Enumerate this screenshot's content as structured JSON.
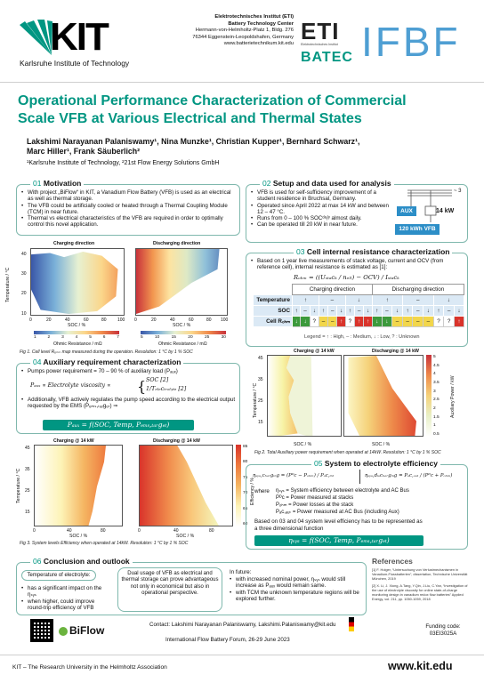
{
  "header": {
    "kit_logo_text": "KIT",
    "kit_subtitle": "Karlsruhe Institute of Technology",
    "institute_lines": [
      "Elektrotechnisches Institut (ETI)",
      "Battery Technology Center",
      "Hermann-von-Helmholtz-Platz 1, Bldg. 276",
      "76344 Eggenstein-Leopoldshafen, Germany",
      "www.batterietechnikum.kit.edu"
    ],
    "eti_logo": "ETI",
    "eti_sub": "Elektrotechnisches Institut",
    "btc_logo": "BATEC",
    "ifbf_logo": "IFBF"
  },
  "title": "Operational Performance Characterization of Commercial Scale VFB at Various Electrical and Thermal States",
  "authors_line1": "Lakshimi Narayanan Palaniswamy¹, Nina Munzke¹, Christian Kupper¹, Bernhard Schwarz¹,",
  "authors_line2": "Marc Hiller¹, Frank Säuberlich²",
  "affiliations": "¹Karlsruhe Institute of Technology, ²21st Flow Energy Solutions GmbH",
  "motivation": {
    "num": "01",
    "title": "Motivation",
    "bullets": [
      "With project „BiFlow“ in KIT, a Vanadium Flow Battery (VFB) is used as an electrical as well as thermal storage.",
      "The VFB could be artificially cooled or heated through a Thermal Coupling Module (TCM) in near future.",
      "Thermal vs electrical characteristics of the VFB are required in order to optimally control this novel application."
    ],
    "chart_titles": [
      "Charging direction",
      "Discharging direction"
    ],
    "ylabel": "Temperature / °C",
    "xlabel": "SOC / %",
    "cbar_label": "Ohmic Resistance / mΩ",
    "cbar1_ticks": [
      "1",
      "2",
      "3",
      "4",
      "5",
      "6",
      "7"
    ],
    "cbar2_ticks": [
      "5",
      "10",
      "15",
      "20",
      "25",
      "30"
    ],
    "caption": "Fig 1. Cell level Rₒₕₘ map measured during the operation. Resolution: 1 °C by 1 % SOC"
  },
  "setup": {
    "num": "02",
    "title": "Setup and data used for analysis",
    "bullets": [
      "VFB is used for self-sufficiency improvement of a student residence in Bruchsal, Germany.",
      "Operated since April 2022 at max 14 kW and between 12 – 47 °C.",
      "Runs from 0 – 100 % SOCᵈᵃᵢˡʸ almost daily.",
      "Can be operated till 20 kW in near future."
    ],
    "aux_label": "AUX",
    "power_label": "14 kW",
    "vfb_label": "120 kWh VFB",
    "grid_symbol": "~ 3"
  },
  "resistance": {
    "num": "03",
    "title": "Cell internal resistance characterization",
    "bullet": "Based on 1 year live measurements of stack voltage, current and OCV (from reference cell), internal resistance is estimated as [1]:",
    "formula": "Rₒₕₘ = ((Uₛₜₐcₖ / nₑₗₗ) − OCV) / Iₛₜₐcₖ",
    "col_headers": [
      "Charging direction",
      "Discharging direction"
    ],
    "row_labels": [
      "Temperature",
      "SOC",
      "Cell Rₒₕₘ"
    ],
    "temp_row": [
      "↑",
      "–",
      "↓",
      "↑",
      "–",
      "↓"
    ],
    "soc_row": [
      "↑",
      "–",
      "↓",
      "↑",
      "–",
      "↓",
      "↑",
      "–",
      "↓",
      "↑",
      "–",
      "↓",
      "↑",
      "–",
      "↓",
      "↑",
      "–",
      "↓"
    ],
    "cell_row": [
      "↓",
      "↓",
      "?",
      "–",
      "–",
      "↑",
      "?",
      "↑",
      "↑",
      "↓",
      "↓",
      "–",
      "–",
      "–",
      "–",
      "?",
      "?",
      "↑"
    ],
    "cell_colors": [
      "#3c9a3c",
      "#3c9a3c",
      "#ffffff",
      "#f2d64b",
      "#f2d64b",
      "#d9342b",
      "#ffffff",
      "#d9342b",
      "#d9342b",
      "#3c9a3c",
      "#3c9a3c",
      "#f2d64b",
      "#f2d64b",
      "#f2d64b",
      "#f2d64b",
      "#ffffff",
      "#ffffff",
      "#d9342b"
    ],
    "legend": "Legend = ↑ : High, – : Medium, ↓ : Low, ? : Unknown"
  },
  "auxiliary": {
    "num": "04",
    "title": "Auxiliary requirement characterization",
    "bullet1": "Pumps power requirement = 70 – 90 % of auxiliary load (Pₐᵤₓ)",
    "relation": "Pₐᵤₓ ∝ Electrolyte viscosity ∝",
    "relation_cases": [
      "SOC [2]",
      "1/Tₑₗₑcₜᵣₒₗᵧₜₑ [2]"
    ],
    "bullet2": "Additionally, VFB actively regulates the pump speed according to the electrical output requested by the EMS (Pₑₘₛ,ₜₐᵣgₑₜ) ⇒",
    "formula": "Pₐᵤₓ = f(SOC, Temp, Pₑₘₛ,ₜₐᵣgₑₜ)"
  },
  "aux_maps": {
    "titles": [
      "Charging @ 14 kW",
      "Discharging @ 14 kW"
    ],
    "ylabel": "Temperature / °C",
    "xlabel": "SOC / %",
    "cbar_label": "Auxiliary Power / kW",
    "cbar_ticks": [
      "5",
      "4.5",
      "4",
      "3.5",
      "3",
      "2.5",
      "2",
      "1.5",
      "1",
      "0.5"
    ],
    "caption": "Fig 2. Total Auxiliary power requirement when operated at 14kW. Resolution: 1 °C by 1 % SOC"
  },
  "eff_maps": {
    "titles": [
      "Charging @ 14 kW",
      "Discharging @ 14 kW"
    ],
    "ylabel": "Temperature / °C",
    "xlabel": "SOC / %",
    "cbar_label": "Efficiency / %",
    "cbar_ticks": [
      "85",
      "80",
      "75",
      "70",
      "65",
      "60"
    ],
    "caption": "Fig 3. System levels Efficiency when operated at 14kW. Resolution: 1 °C by 1 % SOC"
  },
  "x_ticks": [
    "0",
    "20",
    "40",
    "60",
    "80",
    "100"
  ],
  "y_ticks": [
    "45",
    "40",
    "35",
    "30",
    "25",
    "20",
    "15",
    "10"
  ],
  "system_eff": {
    "num": "05",
    "title": "System to electrolyte efficiency",
    "eq_charging": "ηₛᵧₛ,cₕₐᵣgᵢₙg = (Pᴰc − Pₒₕₘ) / Pₐc,ᵢₙₜ",
    "eq_discharging": "ηₛᵧₛ,dᵢₛcₕₐᵣgᵢₙg = Pₐc,ₒᵤₜ / (Pᴰc + Pₒₕₘ)",
    "where": "where",
    "defs": [
      "ηₛᵧₛ = System efficiency between electrolyte and AC Bus",
      "Pᴰc = Power measured at stacks",
      "Pₒₕₘ = Power losses at the stack",
      "Pₐc,ₐᵤₜ = Power measured at AC Bus (including Aux)"
    ],
    "text": "Based on 03 and 04 system level efficiency has to be represented as a three dimensional function",
    "formula": "ηₛᵧₛ = f(SOC, Temp, Pₑₘₛ,ₜₐᵣgₑₜ)"
  },
  "conclusion": {
    "num": "06",
    "title": "Conclusion and outlook",
    "col1_head": "Temperature of electrolyte:",
    "col1_bullets": [
      "has a significant impact on the ηₛᵧₛ",
      "when higher, could improve round-trip efficiency of VFB"
    ],
    "col2_text": "Dual usage of VFB as electrical and thermal storage can prove advantageous not only in economical but also in operational perspective.",
    "col3_head": "In future:",
    "col3_bullets": [
      "with increased nominal power, ηₛᵧₛ would still increase as Pₐᵤₓ would remain same.",
      "with TCM the unknown temperature regions will be explored further."
    ]
  },
  "references": {
    "title": "References",
    "items": [
      "[1] F. Holger, “Untersuchung von Verlustmechanismen in Vanadium-Flussbatterien”, dissertation, Technische Universität München, 2019",
      "[2] X. Li, J. Xiong, A.Tang, Y.Qin, J.Liu, C.Yan, “Investigation of the use of electrolyte viscosity for online state-of-charge monitoring design in vanadium redox flow batteries” Applied Energy, vol. 211, pp. 1050-1059, 2018"
    ]
  },
  "footer": {
    "biflow_logo": "BiFlow",
    "contact": "Contact: Lakshimi Narayanan Palaniswamy, Lakshimi.Palaniswamy@kit.edu",
    "conference": "International Flow Battery Forum, 26-29 June 2023",
    "funding_label": "Funding code:",
    "funding_code": "03EI3025A",
    "bottom_left": "KIT – The Research University in the Helmholtz Association",
    "bottom_right": "www.kit.edu"
  },
  "colors": {
    "accent": "#009682",
    "kit_green": "#009682",
    "highlight": "#2c8ec7"
  }
}
